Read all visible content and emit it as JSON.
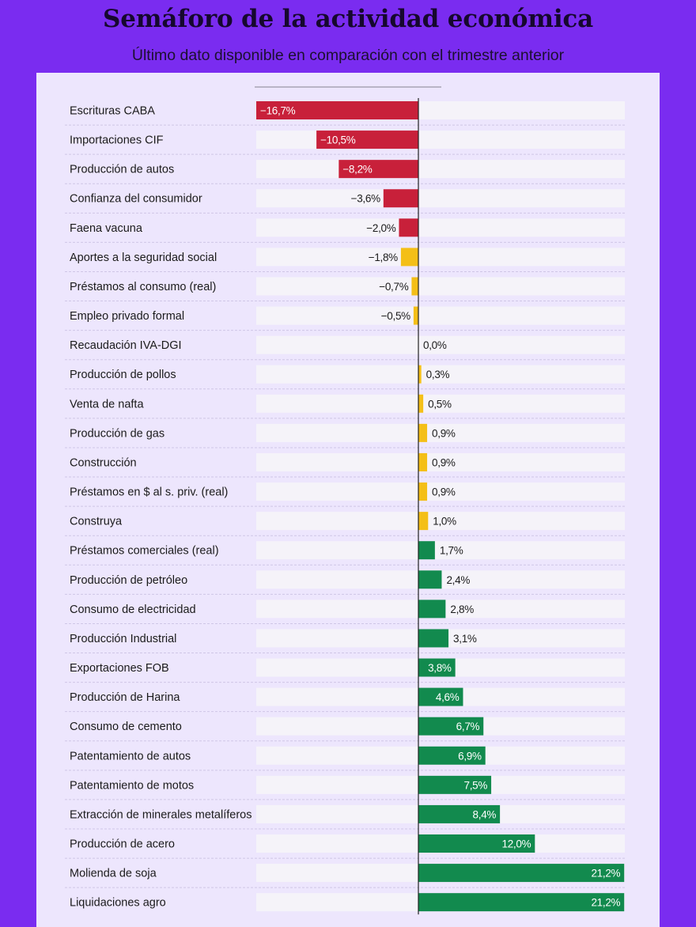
{
  "chart_data": {
    "type": "bar",
    "orientation": "horizontal",
    "title": "Semáforo de la actividad económica",
    "subtitle": "Último dato disponible en comparación con el trimestre anterior",
    "xlabel": "",
    "ylabel": "",
    "xlim": [
      -16.7,
      21.2
    ],
    "grid": false,
    "legend": "none",
    "categories": [
      "Escrituras CABA",
      "Importaciones CIF",
      "Producción de autos",
      "Confianza del consumidor",
      "Faena vacuna",
      "Aportes a la seguridad social",
      "Préstamos al consumo (real)",
      "Empleo privado formal",
      "Recaudación IVA-DGI",
      "Producción de pollos",
      "Venta de nafta",
      "Producción de gas",
      "Construcción",
      "Préstamos en $ al s. priv. (real)",
      "Construya",
      "Préstamos comerciales (real)",
      "Producción de petróleo",
      "Consumo de electricidad",
      "Producción Industrial",
      "Exportaciones FOB",
      "Producción de Harina",
      "Consumo de cemento",
      "Patentamiento de autos",
      "Patentamiento de motos",
      "Extracción de minerales metalíferos",
      "Producción de acero",
      "Molienda de soja",
      "Liquidaciones agro"
    ],
    "values": [
      -16.7,
      -10.5,
      -8.2,
      -3.6,
      -2.0,
      -1.8,
      -0.7,
      -0.5,
      0.0,
      0.3,
      0.5,
      0.9,
      0.9,
      0.9,
      1.0,
      1.7,
      2.4,
      2.8,
      3.1,
      3.8,
      4.6,
      6.7,
      6.9,
      7.5,
      8.4,
      12.0,
      21.2,
      21.2
    ],
    "value_labels": [
      "−16,7%",
      "−10,5%",
      "−8,2%",
      "−3,6%",
      "−2,0%",
      "−1,8%",
      "−0,7%",
      "−0,5%",
      "0,0%",
      "0,3%",
      "0,5%",
      "0,9%",
      "0,9%",
      "0,9%",
      "1,0%",
      "1,7%",
      "2,4%",
      "2,8%",
      "3,1%",
      "3,8%",
      "4,6%",
      "6,7%",
      "6,9%",
      "7,5%",
      "8,4%",
      "12,0%",
      "21,2%",
      "21,2%"
    ],
    "colors": {
      "red": "#c8203a",
      "yellow": "#f4bf17",
      "green": "#128a4e",
      "track": "#f5f3f9",
      "axis": "#222222"
    },
    "color_rule": "value <= -2.0 → red; -2.0 < value <= 1.0 → yellow; value > 1.0 → green"
  }
}
